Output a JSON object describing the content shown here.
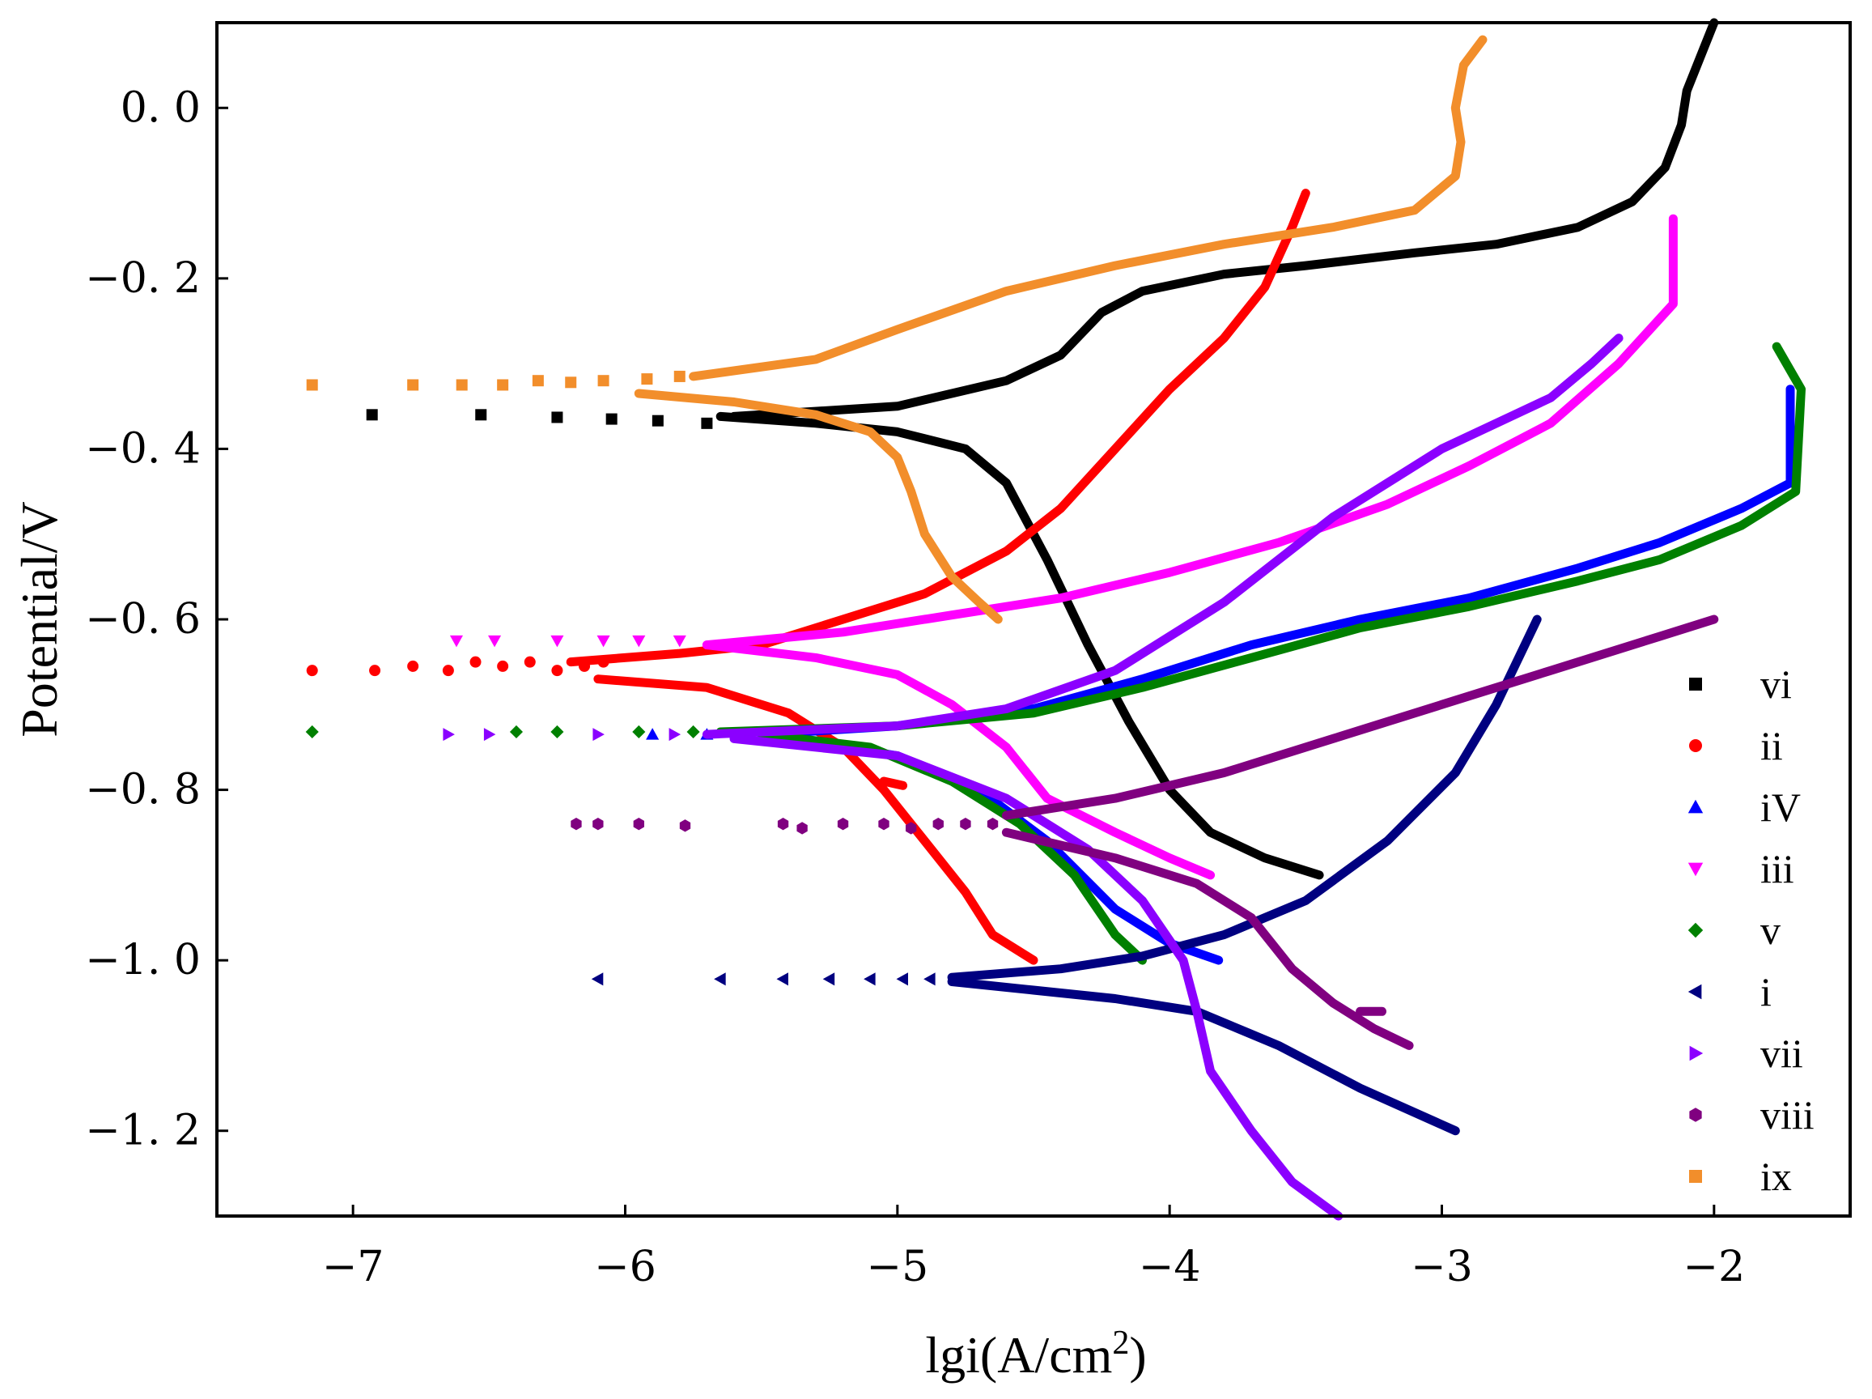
{
  "chart_data": {
    "type": "scatter",
    "title": "",
    "xlabel": "lgi(A/cm",
    "xlabel_superscript": "2",
    "xlabel_suffix": ")",
    "ylabel": "Potential/V",
    "xlim": [
      -7.5,
      -1.5
    ],
    "ylim": [
      -1.3,
      0.1
    ],
    "xticks": [
      -7,
      -6,
      -5,
      -4,
      -3,
      -2
    ],
    "xtick_labels": [
      "−7",
      "−6",
      "−5",
      "−4",
      "−3",
      "−2"
    ],
    "yticks": [
      0.0,
      -0.2,
      -0.4,
      -0.6,
      -0.8,
      -1.0,
      -1.2
    ],
    "ytick_labels": [
      "0. 0",
      "−0. 2",
      "−0. 4",
      "−0. 6",
      "−0. 8",
      "−1. 0",
      "−1. 2"
    ],
    "grid": false,
    "legend_position": "right",
    "series": [
      {
        "name": "vi",
        "color": "#000000",
        "marker": "square",
        "scatter": [
          [
            -6.93,
            -0.36
          ],
          [
            -6.53,
            -0.36
          ],
          [
            -6.25,
            -0.363
          ],
          [
            -6.05,
            -0.365
          ],
          [
            -5.88,
            -0.367
          ],
          [
            -5.7,
            -0.37
          ]
        ],
        "lines": [
          [
            [
              -5.6,
              -0.362
            ],
            [
              -5.0,
              -0.35
            ],
            [
              -4.6,
              -0.32
            ],
            [
              -4.4,
              -0.29
            ],
            [
              -4.25,
              -0.24
            ],
            [
              -4.1,
              -0.215
            ],
            [
              -3.8,
              -0.195
            ],
            [
              -3.5,
              -0.185
            ],
            [
              -3.1,
              -0.17
            ],
            [
              -2.8,
              -0.16
            ],
            [
              -2.5,
              -0.14
            ],
            [
              -2.3,
              -0.11
            ],
            [
              -2.18,
              -0.07
            ],
            [
              -2.12,
              -0.02
            ],
            [
              -2.1,
              0.02
            ],
            [
              -2.05,
              0.06
            ],
            [
              -2.0,
              0.1
            ]
          ],
          [
            [
              -5.65,
              -0.362
            ],
            [
              -5.3,
              -0.37
            ],
            [
              -5.0,
              -0.38
            ],
            [
              -4.75,
              -0.4
            ],
            [
              -4.6,
              -0.44
            ],
            [
              -4.45,
              -0.53
            ],
            [
              -4.3,
              -0.63
            ],
            [
              -4.15,
              -0.72
            ],
            [
              -4.0,
              -0.8
            ],
            [
              -3.85,
              -0.85
            ],
            [
              -3.65,
              -0.88
            ],
            [
              -3.45,
              -0.9
            ]
          ]
        ]
      },
      {
        "name": "ii",
        "color": "#ff0000",
        "marker": "circle",
        "scatter": [
          [
            -7.15,
            -0.66
          ],
          [
            -6.92,
            -0.66
          ],
          [
            -6.78,
            -0.655
          ],
          [
            -6.65,
            -0.66
          ],
          [
            -6.55,
            -0.65
          ],
          [
            -6.45,
            -0.655
          ],
          [
            -6.35,
            -0.65
          ],
          [
            -6.25,
            -0.66
          ],
          [
            -6.15,
            -0.655
          ],
          [
            -6.08,
            -0.65
          ]
        ],
        "lines": [
          [
            [
              -6.2,
              -0.65
            ],
            [
              -5.8,
              -0.64
            ],
            [
              -5.5,
              -0.63
            ],
            [
              -5.2,
              -0.6
            ],
            [
              -4.9,
              -0.57
            ],
            [
              -4.6,
              -0.52
            ],
            [
              -4.4,
              -0.47
            ],
            [
              -4.2,
              -0.4
            ],
            [
              -4.0,
              -0.33
            ],
            [
              -3.8,
              -0.27
            ],
            [
              -3.65,
              -0.21
            ],
            [
              -3.55,
              -0.14
            ],
            [
              -3.5,
              -0.1
            ]
          ],
          [
            [
              -6.1,
              -0.67
            ],
            [
              -5.7,
              -0.68
            ],
            [
              -5.4,
              -0.71
            ],
            [
              -5.2,
              -0.75
            ],
            [
              -5.05,
              -0.8
            ],
            [
              -4.9,
              -0.86
            ],
            [
              -4.75,
              -0.92
            ],
            [
              -4.65,
              -0.97
            ],
            [
              -4.5,
              -1.0
            ]
          ],
          [
            [
              -5.05,
              -0.79
            ],
            [
              -4.98,
              -0.795
            ]
          ]
        ]
      },
      {
        "name": "iV",
        "color": "#0000ff",
        "marker": "triangle-up",
        "scatter": [
          [
            -5.9,
            -0.735
          ],
          [
            -5.7,
            -0.735
          ],
          [
            -5.55,
            -0.735
          ]
        ],
        "lines": [
          [
            [
              -5.5,
              -0.735
            ],
            [
              -5.0,
              -0.725
            ],
            [
              -4.5,
              -0.705
            ],
            [
              -4.1,
              -0.67
            ],
            [
              -3.7,
              -0.63
            ],
            [
              -3.3,
              -0.6
            ],
            [
              -2.9,
              -0.575
            ],
            [
              -2.5,
              -0.54
            ],
            [
              -2.2,
              -0.51
            ],
            [
              -1.9,
              -0.47
            ],
            [
              -1.72,
              -0.44
            ],
            [
              -1.72,
              -0.33
            ]
          ],
          [
            [
              -5.4,
              -0.74
            ],
            [
              -5.0,
              -0.76
            ],
            [
              -4.7,
              -0.8
            ],
            [
              -4.45,
              -0.86
            ],
            [
              -4.2,
              -0.94
            ],
            [
              -4.0,
              -0.98
            ],
            [
              -3.82,
              -1.0
            ]
          ]
        ]
      },
      {
        "name": "iii",
        "color": "#ff00ff",
        "marker": "triangle-down",
        "scatter": [
          [
            -6.62,
            -0.625
          ],
          [
            -6.48,
            -0.625
          ],
          [
            -6.25,
            -0.625
          ],
          [
            -6.08,
            -0.625
          ],
          [
            -5.95,
            -0.625
          ],
          [
            -5.8,
            -0.625
          ]
        ],
        "lines": [
          [
            [
              -5.7,
              -0.63
            ],
            [
              -5.2,
              -0.615
            ],
            [
              -4.8,
              -0.595
            ],
            [
              -4.4,
              -0.575
            ],
            [
              -4.0,
              -0.545
            ],
            [
              -3.6,
              -0.51
            ],
            [
              -3.2,
              -0.465
            ],
            [
              -2.9,
              -0.42
            ],
            [
              -2.6,
              -0.37
            ],
            [
              -2.35,
              -0.3
            ],
            [
              -2.15,
              -0.23
            ],
            [
              -2.15,
              -0.13
            ]
          ],
          [
            [
              -5.7,
              -0.63
            ],
            [
              -5.3,
              -0.645
            ],
            [
              -5.0,
              -0.665
            ],
            [
              -4.8,
              -0.7
            ],
            [
              -4.6,
              -0.75
            ],
            [
              -4.45,
              -0.81
            ],
            [
              -4.2,
              -0.85
            ],
            [
              -4.0,
              -0.88
            ],
            [
              -3.85,
              -0.9
            ]
          ]
        ]
      },
      {
        "name": "v",
        "color": "#008000",
        "marker": "diamond",
        "scatter": [
          [
            -7.15,
            -0.732
          ],
          [
            -6.4,
            -0.732
          ],
          [
            -6.25,
            -0.732
          ],
          [
            -5.95,
            -0.732
          ],
          [
            -5.75,
            -0.732
          ]
        ],
        "lines": [
          [
            [
              -5.65,
              -0.732
            ],
            [
              -5.0,
              -0.725
            ],
            [
              -4.5,
              -0.71
            ],
            [
              -4.1,
              -0.68
            ],
            [
              -3.7,
              -0.645
            ],
            [
              -3.3,
              -0.61
            ],
            [
              -2.9,
              -0.585
            ],
            [
              -2.5,
              -0.555
            ],
            [
              -2.2,
              -0.53
            ],
            [
              -1.9,
              -0.49
            ],
            [
              -1.7,
              -0.45
            ],
            [
              -1.68,
              -0.33
            ],
            [
              -1.77,
              -0.28
            ]
          ],
          [
            [
              -5.5,
              -0.735
            ],
            [
              -5.1,
              -0.75
            ],
            [
              -4.8,
              -0.79
            ],
            [
              -4.55,
              -0.84
            ],
            [
              -4.35,
              -0.9
            ],
            [
              -4.2,
              -0.97
            ],
            [
              -4.1,
              -1.0
            ]
          ]
        ]
      },
      {
        "name": "i",
        "color": "#000080",
        "marker": "triangle-left",
        "scatter": [
          [
            -6.1,
            -1.022
          ],
          [
            -5.65,
            -1.022
          ],
          [
            -5.42,
            -1.022
          ],
          [
            -5.25,
            -1.022
          ],
          [
            -5.1,
            -1.022
          ],
          [
            -4.98,
            -1.022
          ],
          [
            -4.88,
            -1.022
          ]
        ],
        "lines": [
          [
            [
              -4.8,
              -1.02
            ],
            [
              -4.4,
              -1.01
            ],
            [
              -4.1,
              -0.995
            ],
            [
              -3.8,
              -0.97
            ],
            [
              -3.5,
              -0.93
            ],
            [
              -3.2,
              -0.86
            ],
            [
              -2.95,
              -0.78
            ],
            [
              -2.8,
              -0.7
            ],
            [
              -2.65,
              -0.6
            ]
          ],
          [
            [
              -4.8,
              -1.025
            ],
            [
              -4.5,
              -1.035
            ],
            [
              -4.2,
              -1.045
            ],
            [
              -3.9,
              -1.06
            ],
            [
              -3.6,
              -1.1
            ],
            [
              -3.3,
              -1.15
            ],
            [
              -2.95,
              -1.2
            ]
          ]
        ]
      },
      {
        "name": "vii",
        "color": "#8b00ff",
        "marker": "triangle-right",
        "scatter": [
          [
            -6.65,
            -0.735
          ],
          [
            -6.5,
            -0.735
          ],
          [
            -6.1,
            -0.735
          ],
          [
            -5.82,
            -0.735
          ]
        ],
        "lines": [
          [
            [
              -5.7,
              -0.735
            ],
            [
              -5.0,
              -0.725
            ],
            [
              -4.6,
              -0.705
            ],
            [
              -4.2,
              -0.66
            ],
            [
              -3.8,
              -0.58
            ],
            [
              -3.4,
              -0.48
            ],
            [
              -3.0,
              -0.4
            ],
            [
              -2.6,
              -0.34
            ],
            [
              -2.45,
              -0.3
            ],
            [
              -2.35,
              -0.27
            ]
          ],
          [
            [
              -5.6,
              -0.74
            ],
            [
              -5.0,
              -0.76
            ],
            [
              -4.6,
              -0.81
            ],
            [
              -4.3,
              -0.87
            ],
            [
              -4.1,
              -0.93
            ],
            [
              -3.95,
              -1.0
            ],
            [
              -3.9,
              -1.06
            ],
            [
              -3.85,
              -1.13
            ],
            [
              -3.7,
              -1.2
            ],
            [
              -3.55,
              -1.26
            ],
            [
              -3.38,
              -1.3
            ]
          ]
        ]
      },
      {
        "name": "viii",
        "color": "#800080",
        "marker": "hexagon",
        "scatter": [
          [
            -6.18,
            -0.84
          ],
          [
            -6.1,
            -0.84
          ],
          [
            -5.95,
            -0.84
          ],
          [
            -5.78,
            -0.842
          ],
          [
            -5.42,
            -0.84
          ],
          [
            -5.35,
            -0.845
          ],
          [
            -5.2,
            -0.84
          ],
          [
            -5.05,
            -0.84
          ],
          [
            -4.95,
            -0.845
          ],
          [
            -4.85,
            -0.84
          ],
          [
            -4.75,
            -0.84
          ],
          [
            -4.65,
            -0.84
          ]
        ],
        "lines": [
          [
            [
              -4.6,
              -0.83
            ],
            [
              -4.2,
              -0.81
            ],
            [
              -3.8,
              -0.78
            ],
            [
              -3.4,
              -0.74
            ],
            [
              -3.0,
              -0.7
            ],
            [
              -2.6,
              -0.66
            ],
            [
              -2.2,
              -0.62
            ],
            [
              -2.0,
              -0.6
            ]
          ],
          [
            [
              -4.6,
              -0.85
            ],
            [
              -4.2,
              -0.88
            ],
            [
              -3.9,
              -0.91
            ],
            [
              -3.7,
              -0.95
            ],
            [
              -3.55,
              -1.01
            ],
            [
              -3.4,
              -1.05
            ],
            [
              -3.25,
              -1.08
            ],
            [
              -3.12,
              -1.1
            ]
          ],
          [
            [
              -3.3,
              -1.06
            ],
            [
              -3.22,
              -1.06
            ]
          ]
        ]
      },
      {
        "name": "ix",
        "color": "#f28e2b",
        "marker": "square",
        "scatter": [
          [
            -7.15,
            -0.325
          ],
          [
            -6.78,
            -0.325
          ],
          [
            -6.6,
            -0.325
          ],
          [
            -6.45,
            -0.325
          ],
          [
            -6.32,
            -0.32
          ],
          [
            -6.2,
            -0.322
          ],
          [
            -6.08,
            -0.32
          ],
          [
            -5.92,
            -0.318
          ],
          [
            -5.8,
            -0.315
          ]
        ],
        "lines": [
          [
            [
              -5.75,
              -0.315
            ],
            [
              -5.3,
              -0.295
            ],
            [
              -5.0,
              -0.26
            ],
            [
              -4.6,
              -0.215
            ],
            [
              -4.2,
              -0.185
            ],
            [
              -3.8,
              -0.16
            ],
            [
              -3.4,
              -0.14
            ],
            [
              -3.1,
              -0.12
            ],
            [
              -2.95,
              -0.08
            ],
            [
              -2.93,
              -0.04
            ],
            [
              -2.95,
              0.0
            ],
            [
              -2.92,
              0.05
            ],
            [
              -2.85,
              0.08
            ]
          ],
          [
            [
              -5.95,
              -0.335
            ],
            [
              -5.6,
              -0.345
            ],
            [
              -5.3,
              -0.36
            ],
            [
              -5.1,
              -0.38
            ],
            [
              -5.0,
              -0.41
            ],
            [
              -4.95,
              -0.45
            ],
            [
              -4.9,
              -0.5
            ],
            [
              -4.8,
              -0.55
            ],
            [
              -4.7,
              -0.58
            ],
            [
              -4.63,
              -0.6
            ]
          ]
        ]
      }
    ]
  }
}
